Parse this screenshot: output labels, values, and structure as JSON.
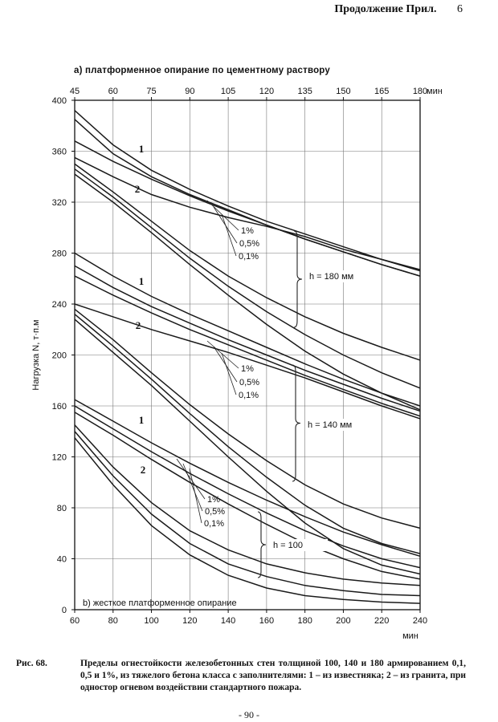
{
  "header": {
    "title": "Продолжение Прил.",
    "page_tag": "6"
  },
  "subtitle_top": "а) платформенное опирание по цементному раствору",
  "caption": {
    "fig_label": "Рис. 68.",
    "text": "Пределы огнестойкости железобетонных стен толщиной 100, 140 и 180 армированием 0,1, 0,5 и 1%, из тяжелого бетона класса с заполнителями: 1 – из известняка; 2 – из гранита, при одностор огневом воздействии стандартного пожара."
  },
  "footer": {
    "page": "- 90 -"
  },
  "chart_data": {
    "type": "line",
    "ylabel": "Нагрузка N, т·п.м",
    "y_ticks": [
      0,
      40,
      80,
      120,
      160,
      200,
      240,
      280,
      320,
      360,
      400
    ],
    "ylim": [
      0,
      400
    ],
    "x_top": {
      "unit": "мин",
      "ticks": [
        45,
        60,
        75,
        90,
        105,
        120,
        135,
        150,
        165,
        180
      ],
      "range": [
        45,
        180
      ]
    },
    "x_bottom": {
      "unit": "мин",
      "ticks": [
        60,
        80,
        100,
        120,
        140,
        160,
        180,
        200,
        220,
        240
      ],
      "range": [
        60,
        240
      ]
    },
    "bottom_label": "b) жесткое платформенное опирание",
    "grid": true,
    "groups": [
      {
        "thickness_label": "h = 180 мм",
        "aggregate_labels": [
          "1",
          "2"
        ],
        "reinforcement_labels": [
          "1%",
          "0,5%",
          "0,1%"
        ],
        "series": [
          {
            "axis": "top",
            "x": [
              45,
              60,
              75,
              90,
              105,
              120,
              135,
              150,
              165,
              180
            ],
            "y": [
              392,
              365,
              345,
              330,
              317,
              305,
              295,
              285,
              275,
              266
            ]
          },
          {
            "axis": "top",
            "x": [
              45,
              60,
              75,
              90,
              105,
              120,
              135,
              150,
              165,
              180
            ],
            "y": [
              385,
              358,
              340,
              326,
              314,
              302,
              291,
              281,
              271,
              262
            ]
          },
          {
            "axis": "top",
            "x": [
              45,
              60,
              75,
              90,
              105,
              120,
              135,
              150,
              165,
              180
            ],
            "y": [
              368,
              352,
              338,
              325,
              313,
              302,
              291,
              281,
              271,
              262
            ]
          },
          {
            "axis": "top",
            "x": [
              45,
              60,
              75,
              90,
              105,
              120,
              135,
              150,
              165,
              180
            ],
            "y": [
              355,
              340,
              326,
              316,
              308,
              301,
              293,
              283,
              275,
              267
            ]
          },
          {
            "axis": "bottom",
            "x": [
              60,
              80,
              100,
              120,
              140,
              160,
              180,
              200,
              220,
              240
            ],
            "y": [
              350,
              328,
              305,
              282,
              262,
              245,
              230,
              217,
              206,
              196
            ]
          },
          {
            "axis": "bottom",
            "x": [
              60,
              80,
              100,
              120,
              140,
              160,
              180,
              200,
              220,
              240
            ],
            "y": [
              346,
              324,
              300,
              276,
              254,
              234,
              216,
              200,
              186,
              174
            ]
          },
          {
            "axis": "bottom",
            "x": [
              60,
              80,
              100,
              120,
              140,
              160,
              180,
              200,
              220,
              240
            ],
            "y": [
              342,
              320,
              296,
              271,
              247,
              224,
              203,
              185,
              170,
              157
            ]
          }
        ]
      },
      {
        "thickness_label": "h = 140 мм",
        "aggregate_labels": [
          "1",
          "2"
        ],
        "reinforcement_labels": [
          "1%",
          "0,5%",
          "0,1%"
        ],
        "series": [
          {
            "axis": "top",
            "x": [
              45,
              60,
              75,
              90,
              105,
              120,
              135,
              150,
              165,
              180
            ],
            "y": [
              280,
              262,
              246,
              232,
              219,
              206,
              193,
              181,
              170,
              160
            ]
          },
          {
            "axis": "top",
            "x": [
              45,
              60,
              75,
              90,
              105,
              120,
              135,
              150,
              165,
              180
            ],
            "y": [
              270,
              253,
              238,
              225,
              212,
              200,
              188,
              177,
              166,
              156
            ]
          },
          {
            "axis": "top",
            "x": [
              45,
              60,
              75,
              90,
              105,
              120,
              135,
              150,
              165,
              180
            ],
            "y": [
              262,
              247,
              233,
              220,
              208,
              196,
              184,
              173,
              162,
              152
            ]
          },
          {
            "axis": "top",
            "x": [
              45,
              60,
              75,
              90,
              105,
              120,
              135,
              150,
              165,
              180
            ],
            "y": [
              240,
              230,
              220,
              211,
              202,
              192,
              182,
              171,
              160,
              150
            ]
          },
          {
            "axis": "bottom",
            "x": [
              60,
              80,
              100,
              120,
              140,
              160,
              180,
              200,
              220,
              240
            ],
            "y": [
              236,
              212,
              186,
              161,
              138,
              117,
              98,
              83,
              72,
              64
            ]
          },
          {
            "axis": "bottom",
            "x": [
              60,
              80,
              100,
              120,
              140,
              160,
              180,
              200,
              220,
              240
            ],
            "y": [
              232,
              207,
              181,
              154,
              128,
              104,
              82,
              64,
              52,
              44
            ]
          },
          {
            "axis": "bottom",
            "x": [
              60,
              80,
              100,
              120,
              140,
              160,
              180,
              200,
              220,
              240
            ],
            "y": [
              228,
              202,
              176,
              148,
              120,
              93,
              68,
              48,
              35,
              28
            ]
          }
        ]
      },
      {
        "thickness_label": "h = 100",
        "aggregate_labels": [
          "1",
          "2"
        ],
        "reinforcement_labels": [
          "1%",
          "0,5%",
          "0,1%"
        ],
        "series": [
          {
            "axis": "top",
            "x": [
              45,
              60,
              75,
              90,
              105,
              120,
              135,
              150,
              165,
              180
            ],
            "y": [
              165,
              148,
              131,
              115,
              100,
              86,
              73,
              61,
              51,
              42
            ]
          },
          {
            "axis": "top",
            "x": [
              45,
              60,
              75,
              90,
              105,
              120,
              135,
              150,
              165,
              180
            ],
            "y": [
              160,
              142,
              124,
              107,
              91,
              76,
              62,
              50,
              40,
              33
            ]
          },
          {
            "axis": "top",
            "x": [
              45,
              60,
              75,
              90,
              105,
              120,
              135,
              150,
              165,
              180
            ],
            "y": [
              155,
              137,
              118,
              100,
              83,
              67,
              52,
              40,
              30,
              24
            ]
          },
          {
            "axis": "bottom",
            "x": [
              60,
              80,
              100,
              120,
              140,
              160,
              180,
              200,
              220,
              240
            ],
            "y": [
              145,
              112,
              84,
              62,
              47,
              36,
              29,
              24,
              21,
              19
            ]
          },
          {
            "axis": "bottom",
            "x": [
              60,
              80,
              100,
              120,
              140,
              160,
              180,
              200,
              220,
              240
            ],
            "y": [
              140,
              105,
              75,
              52,
              36,
              26,
              19,
              15,
              12,
              11
            ]
          },
          {
            "axis": "bottom",
            "x": [
              60,
              80,
              100,
              120,
              140,
              160,
              180,
              200,
              220,
              240
            ],
            "y": [
              135,
              98,
              66,
              43,
              27,
              17,
              11,
              8,
              6,
              5
            ]
          }
        ]
      }
    ]
  }
}
